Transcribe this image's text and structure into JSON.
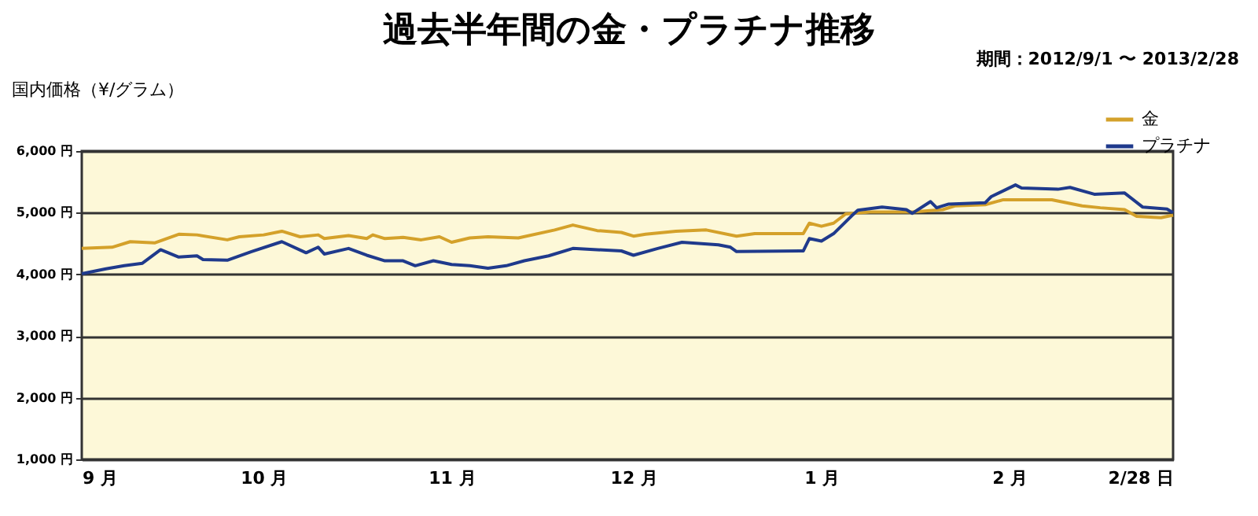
{
  "chart_data": {
    "type": "line",
    "title": "過去半年間の金・プラチナ推移",
    "subtitle": "期間：2012/9/1 〜 2013/2/28",
    "ylabel": "国内価格（¥/グラム）",
    "xlim": [
      "2012-09-01",
      "2013-02-28"
    ],
    "xticks": [
      {
        "value": "2012-09-01",
        "label": "9 月"
      },
      {
        "value": "2012-10-01",
        "label": "10 月"
      },
      {
        "value": "2012-11-01",
        "label": "11 月"
      },
      {
        "value": "2012-12-01",
        "label": "12 月"
      },
      {
        "value": "2013-01-01",
        "label": "1 月"
      },
      {
        "value": "2013-02-01",
        "label": "2 月"
      },
      {
        "value": "2013-02-28",
        "label": "2/28 日"
      }
    ],
    "ylim": [
      1000,
      6000
    ],
    "yticks": [
      {
        "value": 1000,
        "label": "1,000 円"
      },
      {
        "value": 2000,
        "label": "2,000 円"
      },
      {
        "value": 3000,
        "label": "3,000 円"
      },
      {
        "value": 4000,
        "label": "4,000 円"
      },
      {
        "value": 5000,
        "label": "5,000 円"
      },
      {
        "value": 6000,
        "label": "6,000 円"
      }
    ],
    "grid": "y",
    "legend": "top right",
    "series": [
      {
        "name": "金",
        "color": "#d4a12a",
        "x": [
          "2012-09-01",
          "2012-09-06",
          "2012-09-09",
          "2012-09-13",
          "2012-09-17",
          "2012-09-20",
          "2012-09-25",
          "2012-09-27",
          "2012-10-01",
          "2012-10-04",
          "2012-10-07",
          "2012-10-10",
          "2012-10-11",
          "2012-10-15",
          "2012-10-18",
          "2012-10-19",
          "2012-10-21",
          "2012-10-24",
          "2012-10-27",
          "2012-10-30",
          "2012-11-01",
          "2012-11-04",
          "2012-11-07",
          "2012-11-12",
          "2012-11-18",
          "2012-11-21",
          "2012-11-25",
          "2012-11-29",
          "2012-12-01",
          "2012-12-03",
          "2012-12-08",
          "2012-12-13",
          "2012-12-18",
          "2012-12-21",
          "2012-12-29",
          "2012-12-30",
          "2013-01-01",
          "2013-01-03",
          "2013-01-05",
          "2013-01-09",
          "2013-01-16",
          "2013-01-21",
          "2013-01-23",
          "2013-01-28",
          "2013-01-31",
          "2013-02-08",
          "2013-02-13",
          "2013-02-16",
          "2013-02-20",
          "2013-02-22",
          "2013-02-26",
          "2013-02-28"
        ],
        "values": [
          4420,
          4440,
          4530,
          4510,
          4650,
          4640,
          4560,
          4610,
          4640,
          4700,
          4610,
          4640,
          4580,
          4630,
          4580,
          4640,
          4580,
          4600,
          4560,
          4610,
          4520,
          4590,
          4610,
          4590,
          4720,
          4800,
          4710,
          4680,
          4620,
          4650,
          4700,
          4720,
          4620,
          4660,
          4660,
          4830,
          4780,
          4830,
          4980,
          5010,
          5010,
          5050,
          5110,
          5130,
          5210,
          5210,
          5110,
          5080,
          5050,
          4940,
          4920,
          4960
        ]
      },
      {
        "name": "プラチナ",
        "color": "#1f3a8c",
        "x": [
          "2012-09-01",
          "2012-09-05",
          "2012-09-08",
          "2012-09-11",
          "2012-09-14",
          "2012-09-17",
          "2012-09-20",
          "2012-09-21",
          "2012-09-25",
          "2012-09-29",
          "2012-10-04",
          "2012-10-08",
          "2012-10-10",
          "2012-10-11",
          "2012-10-15",
          "2012-10-18",
          "2012-10-21",
          "2012-10-24",
          "2012-10-26",
          "2012-10-29",
          "2012-11-01",
          "2012-11-04",
          "2012-11-07",
          "2012-11-10",
          "2012-11-13",
          "2012-11-17",
          "2012-11-21",
          "2012-11-25",
          "2012-11-29",
          "2012-12-01",
          "2012-12-05",
          "2012-12-09",
          "2012-12-15",
          "2012-12-17",
          "2012-12-18",
          "2012-12-29",
          "2012-12-30",
          "2013-01-01",
          "2013-01-03",
          "2013-01-06",
          "2013-01-07",
          "2013-01-11",
          "2013-01-15",
          "2013-01-16",
          "2013-01-19",
          "2013-01-20",
          "2013-01-22",
          "2013-01-28",
          "2013-01-29",
          "2013-02-02",
          "2013-02-03",
          "2013-02-09",
          "2013-02-11",
          "2013-02-15",
          "2013-02-20",
          "2013-02-23",
          "2013-02-27",
          "2013-02-28"
        ],
        "values": [
          4010,
          4090,
          4140,
          4180,
          4400,
          4280,
          4300,
          4240,
          4230,
          4370,
          4530,
          4350,
          4440,
          4330,
          4420,
          4310,
          4220,
          4220,
          4140,
          4220,
          4160,
          4140,
          4100,
          4140,
          4220,
          4300,
          4420,
          4400,
          4380,
          4310,
          4420,
          4520,
          4480,
          4440,
          4370,
          4380,
          4580,
          4540,
          4660,
          4950,
          5040,
          5090,
          5050,
          4990,
          5180,
          5080,
          5140,
          5160,
          5260,
          5450,
          5400,
          5380,
          5410,
          5300,
          5320,
          5090,
          5060,
          5000
        ]
      }
    ]
  }
}
